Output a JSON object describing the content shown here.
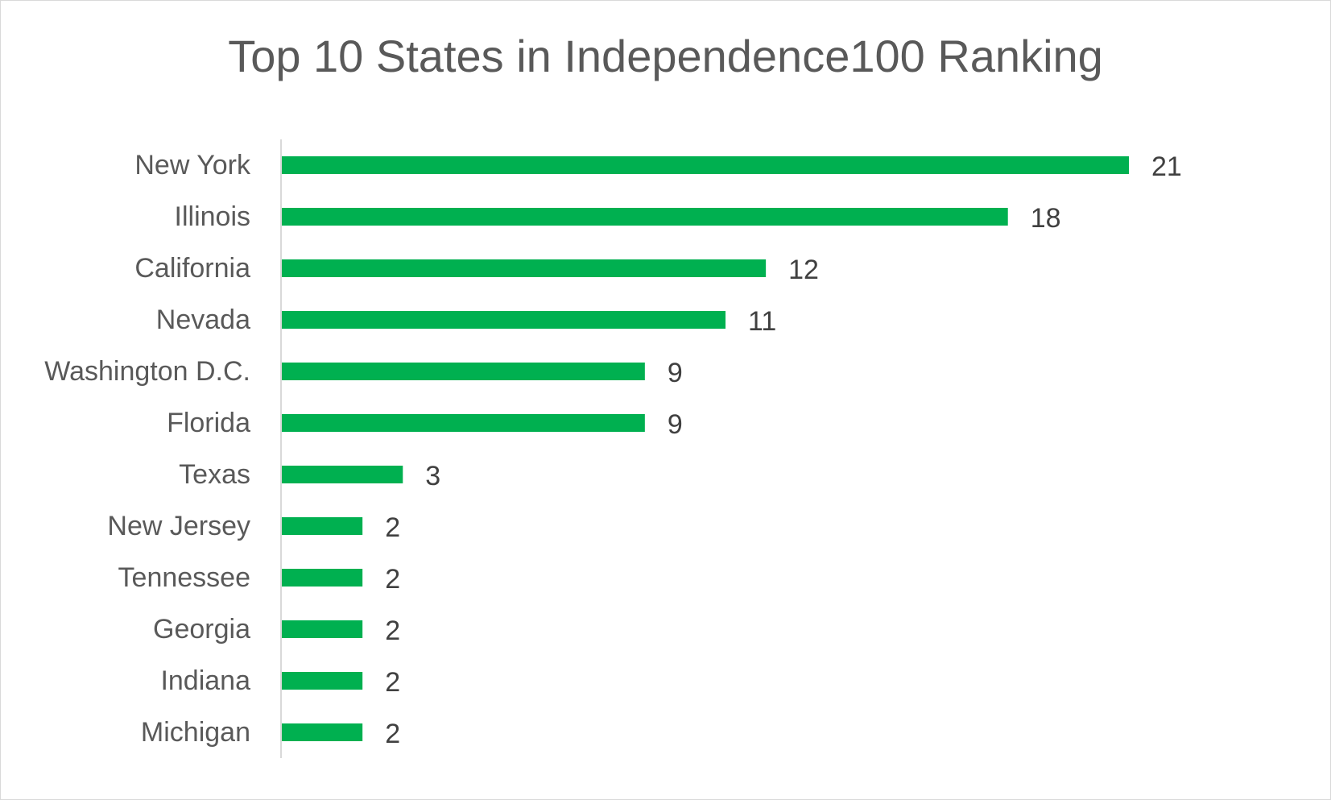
{
  "chart_data": {
    "type": "bar",
    "orientation": "horizontal",
    "title": "Top 10 States in Independence100 Ranking",
    "xlabel": "",
    "ylabel": "",
    "categories": [
      "New York",
      "Illinois",
      "California",
      "Nevada",
      "Washington D.C.",
      "Florida",
      "Texas",
      "New Jersey",
      "Tennessee",
      "Georgia",
      "Indiana",
      "Michigan"
    ],
    "values": [
      21,
      18,
      12,
      11,
      9,
      9,
      3,
      2,
      2,
      2,
      2,
      2
    ],
    "xlim": [
      0,
      21
    ],
    "grid": false,
    "legend": "none",
    "data_labels": true,
    "colors": {
      "bar": "#00b050",
      "text": "#595959",
      "axis": "#d9d9d9"
    }
  }
}
